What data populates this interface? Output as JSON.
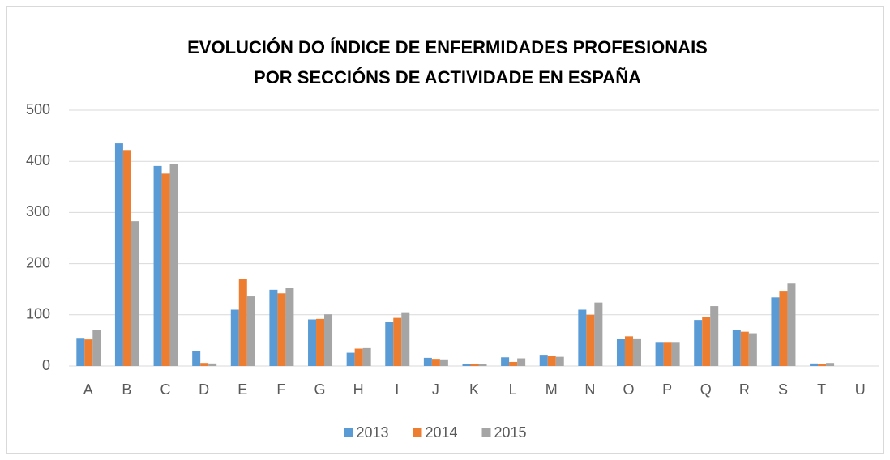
{
  "chart_data": {
    "type": "bar",
    "title": [
      "EVOLUCIÓN DO ÍNDICE DE ENFERMIDADES PROFESIONAIS",
      "POR SECCIÓNS DE ACTIVIDADE EN ESPAÑA"
    ],
    "categories": [
      "A",
      "B",
      "C",
      "D",
      "E",
      "F",
      "G",
      "H",
      "I",
      "J",
      "K",
      "L",
      "M",
      "N",
      "O",
      "P",
      "Q",
      "R",
      "S",
      "T",
      "U"
    ],
    "series": [
      {
        "name": "2013",
        "color": "#5b9bd5",
        "values": [
          55,
          435,
          391,
          29,
          110,
          149,
          91,
          26,
          87,
          16,
          4,
          17,
          22,
          110,
          53,
          47,
          90,
          70,
          134,
          5,
          0
        ]
      },
      {
        "name": "2014",
        "color": "#ed7d31",
        "values": [
          52,
          422,
          376,
          6,
          170,
          142,
          92,
          34,
          94,
          14,
          4,
          8,
          20,
          100,
          58,
          47,
          96,
          67,
          147,
          4,
          0
        ]
      },
      {
        "name": "2015",
        "color": "#a5a5a5",
        "values": [
          71,
          283,
          395,
          5,
          136,
          153,
          101,
          35,
          105,
          13,
          4,
          15,
          18,
          124,
          54,
          47,
          117,
          64,
          161,
          6,
          0
        ]
      }
    ],
    "ylim": [
      0,
      500
    ],
    "yticks": [
      0,
      100,
      200,
      300,
      400,
      500
    ],
    "grid": true,
    "legend": "bottom"
  }
}
